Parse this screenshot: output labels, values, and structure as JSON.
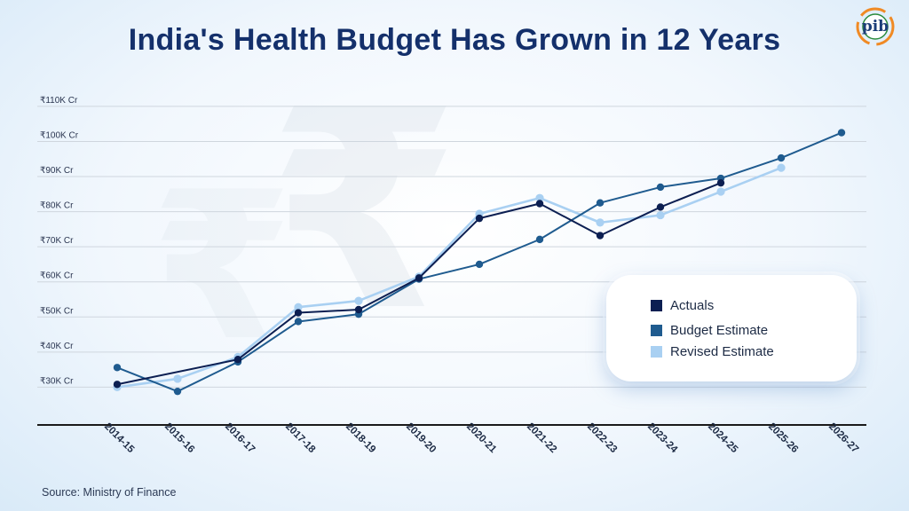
{
  "title": "India's Health Budget Has Grown in 12 Years",
  "logo_text": "pib",
  "source": "Source: Ministry of Finance",
  "colors": {
    "actuals": "#0c1f52",
    "budget": "#1f5b8f",
    "revised": "#a9d0f2",
    "axis": "#1a1a1a",
    "grid": "#cfd6de",
    "title": "#14306b"
  },
  "chart_data": {
    "type": "line",
    "categories": [
      "2014-15",
      "2015-16",
      "2016-17",
      "2017-18",
      "2018-19",
      "2019-20",
      "2020-21",
      "2021-22",
      "2022-23",
      "2023-24",
      "2024-25",
      "2025-26",
      "2026-27"
    ],
    "y_ticks": [
      "₹30K Cr",
      "₹40K Cr",
      "₹50K Cr",
      "₹60K Cr",
      "₹70K Cr",
      "₹80K Cr",
      "₹90K Cr",
      "₹100K Cr",
      "₹110K Cr"
    ],
    "y_tick_values": [
      30000,
      40000,
      50000,
      60000,
      70000,
      80000,
      90000,
      100000,
      110000
    ],
    "ylim": [
      20000,
      112000
    ],
    "unit": "₹ Cr",
    "grid": true,
    "legend_position": "right",
    "series": [
      {
        "name": "Actuals",
        "color": "#0c1f52",
        "values": [
          30800,
          null,
          37900,
          51200,
          52100,
          61100,
          78100,
          82300,
          73200,
          81300,
          88200,
          null,
          null
        ]
      },
      {
        "name": "Budget Estimate",
        "color": "#1f5b8f",
        "values": [
          35600,
          28800,
          37200,
          48700,
          50800,
          60800,
          65000,
          72100,
          82500,
          87000,
          89500,
          95300,
          102500
        ]
      },
      {
        "name": "Revised Estimate",
        "color": "#a9d0f2",
        "values": [
          30000,
          32400,
          38600,
          52800,
          54600,
          61500,
          79400,
          83900,
          76900,
          79000,
          85700,
          92500,
          null
        ]
      }
    ]
  }
}
